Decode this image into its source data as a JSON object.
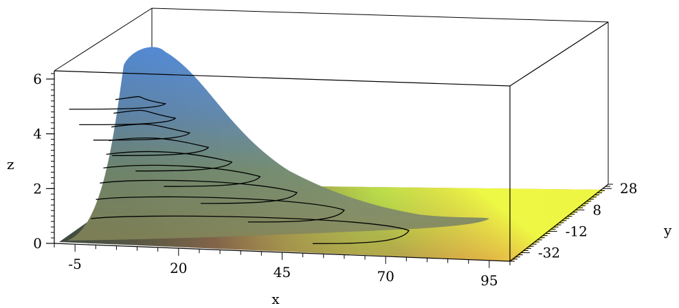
{
  "chart_data": {
    "type": "surface3d",
    "axes": {
      "x": {
        "label": "x",
        "range": [
          -10,
          100
        ],
        "ticks": [
          "-5",
          "20",
          "45",
          "70",
          "95"
        ]
      },
      "y": {
        "label": "y",
        "range": [
          -40,
          32
        ],
        "ticks": [
          "-32",
          "-12",
          "8",
          "28"
        ]
      },
      "z": {
        "label": "z",
        "range": [
          0,
          6.3
        ],
        "ticks": [
          "0",
          "2",
          "4",
          "6"
        ]
      }
    },
    "surface": {
      "peak_z": 6.3,
      "contour_levels_z": [
        0.75,
        1.45,
        2.05,
        2.6,
        3.1,
        3.6,
        4.1,
        4.6,
        5.1
      ]
    },
    "bounding_box": true,
    "grid": false,
    "colors": {
      "peak": "#5b97e8",
      "low_near": "#f05a4a",
      "low_far": "#eeff44",
      "mid": "#93a06b",
      "contour": "#000000",
      "box": "#000000"
    }
  }
}
